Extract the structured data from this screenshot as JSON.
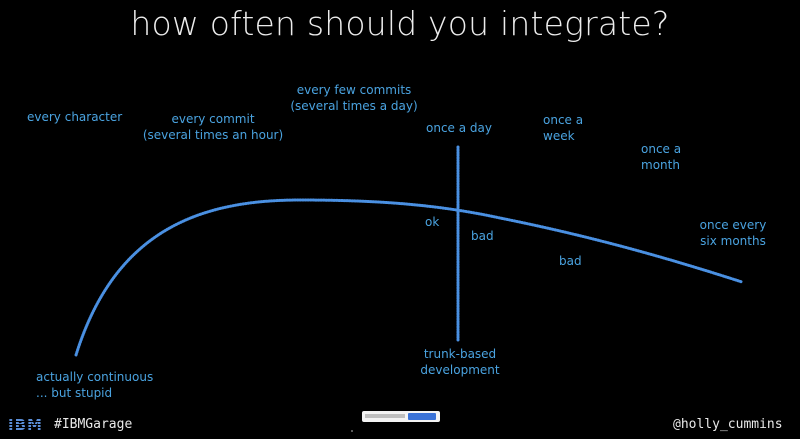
{
  "title": "how often should you integrate?",
  "labels": {
    "every_character": "every character",
    "every_commit_1": "every commit",
    "every_commit_2": "(several times an hour)",
    "every_few_commits_1": "every few commits",
    "every_few_commits_2": "(several times a day)",
    "once_a_day": "once a day",
    "once_a_week_1": "once a",
    "once_a_week_2": "week",
    "once_a_month_1": "once a",
    "once_a_month_2": "month",
    "once_every_six_months_1": "once every",
    "once_every_six_months_2": "six months",
    "ok": "ok",
    "bad_1": "bad",
    "bad_2": "bad",
    "actually_continuous_1": "actually continuous",
    "actually_continuous_2": "... but stupid",
    "trunk_based_1": "trunk-based",
    "trunk_based_2": "development"
  },
  "footer": {
    "logo": "IBM",
    "hashtag": "#IBMGarage",
    "handle": "@holly_cummins"
  },
  "colors": {
    "background": "#000000",
    "line": "#4a90e2",
    "label": "#4aa3e0",
    "title": "#ececec"
  }
}
